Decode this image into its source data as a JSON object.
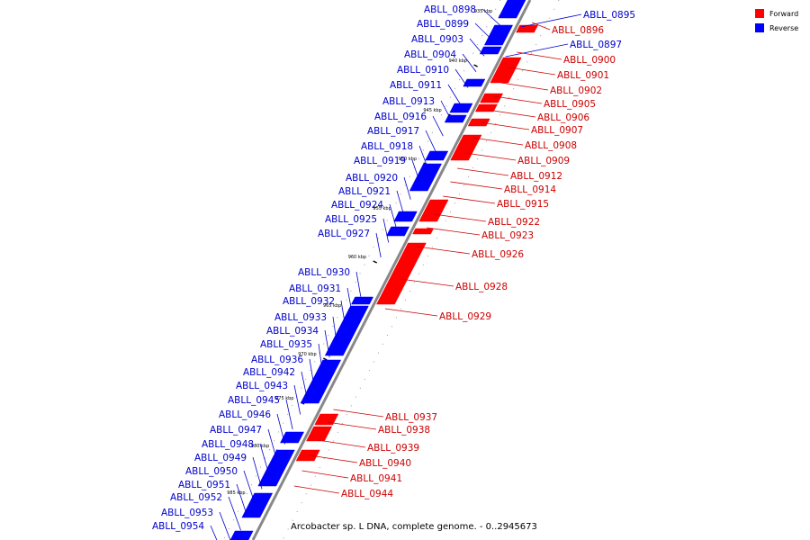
{
  "caption": "Arcobacter sp. L DNA, complete genome. - 0..2945673",
  "legend": [
    {
      "label": "Forward",
      "color": "#ff0000"
    },
    {
      "label": "Reverse",
      "color": "#0000ff"
    }
  ],
  "colors": {
    "forward": "#ff0000",
    "reverse": "#0000ff",
    "forward_label": "#cc0000",
    "reverse_label": "#0000cc",
    "axis": "#888888"
  },
  "ticks": [
    "935 kbp",
    "940 kbp",
    "945 kbp",
    "950 kbp",
    "955 kbp",
    "960 kbp",
    "965 kbp",
    "970 kbp",
    "975 kbp",
    "980 kbp",
    "985 kbp"
  ],
  "reverse_genes": [
    "ABLL_0898",
    "ABLL_0899",
    "ABLL_0903",
    "ABLL_0904",
    "ABLL_0910",
    "ABLL_0911",
    "ABLL_0913",
    "ABLL_0916",
    "ABLL_0917",
    "ABLL_0918",
    "ABLL_0919",
    "ABLL_0920",
    "ABLL_0921",
    "ABLL_0924",
    "ABLL_0925",
    "ABLL_0927",
    "ABLL_0930",
    "ABLL_0931",
    "ABLL_0932",
    "ABLL_0933",
    "ABLL_0934",
    "ABLL_0935",
    "ABLL_0936",
    "ABLL_0942",
    "ABLL_0943",
    "ABLL_0945",
    "ABLL_0946",
    "ABLL_0947",
    "ABLL_0948",
    "ABLL_0949",
    "ABLL_0950",
    "ABLL_0951",
    "ABLL_0952",
    "ABLL_0953",
    "ABLL_0954",
    "ABLL_0895",
    "ABLL_0897"
  ],
  "forward_genes": [
    "ABLL_0896",
    "ABLL_0900",
    "ABLL_0901",
    "ABLL_0902",
    "ABLL_0905",
    "ABLL_0906",
    "ABLL_0907",
    "ABLL_0908",
    "ABLL_0909",
    "ABLL_0912",
    "ABLL_0914",
    "ABLL_0915",
    "ABLL_0922",
    "ABLL_0923",
    "ABLL_0926",
    "ABLL_0928",
    "ABLL_0929",
    "ABLL_0937",
    "ABLL_0938",
    "ABLL_0939",
    "ABLL_0940",
    "ABLL_0941",
    "ABLL_0944"
  ]
}
